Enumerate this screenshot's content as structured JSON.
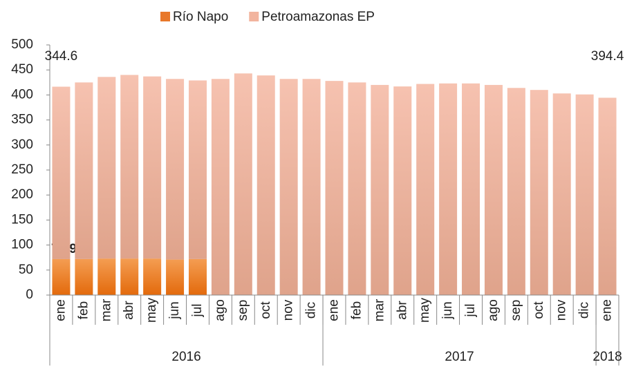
{
  "chart_data": {
    "type": "stacked_bar",
    "categories": [
      "ene",
      "feb",
      "mar",
      "abr",
      "may",
      "jun",
      "jul",
      "ago",
      "sep",
      "oct",
      "nov",
      "dic",
      "ene",
      "feb",
      "mar",
      "abr",
      "may",
      "jun",
      "jul",
      "ago",
      "sep",
      "oct",
      "nov",
      "dic",
      "ene"
    ],
    "groups": [
      {
        "label": "2016",
        "count": 12
      },
      {
        "label": "2017",
        "count": 12
      },
      {
        "label": "2018",
        "count": 1
      }
    ],
    "series": [
      {
        "name": "Río Napo",
        "color": "#e8782a",
        "values": [
          71.9,
          72,
          73,
          73,
          73,
          71,
          72,
          null,
          null,
          null,
          null,
          null,
          null,
          null,
          null,
          null,
          null,
          null,
          null,
          null,
          null,
          null,
          null,
          null,
          null
        ],
        "value_labels": [
          "71.9",
          null,
          null,
          null,
          null,
          null,
          null,
          null,
          null,
          null,
          null,
          null,
          null,
          null,
          null,
          null,
          null,
          null,
          null,
          null,
          null,
          null,
          null,
          null,
          null
        ]
      },
      {
        "name": "Petroamazonas EP",
        "color": "#f2b49e",
        "values": [
          344.6,
          353,
          363,
          367,
          364,
          361,
          357,
          432,
          443,
          439,
          432,
          432,
          428,
          425,
          420,
          417,
          422,
          423,
          423,
          420,
          414,
          410,
          403,
          401,
          394.4
        ],
        "value_labels": [
          "344.6",
          null,
          null,
          null,
          null,
          null,
          null,
          null,
          null,
          null,
          null,
          null,
          null,
          null,
          null,
          null,
          null,
          null,
          null,
          null,
          null,
          null,
          null,
          null,
          "394.4"
        ]
      }
    ],
    "ylim": [
      0,
      500
    ],
    "yticks": [
      0,
      50,
      100,
      150,
      200,
      250,
      300,
      350,
      400,
      450,
      500
    ],
    "legend": "top"
  }
}
